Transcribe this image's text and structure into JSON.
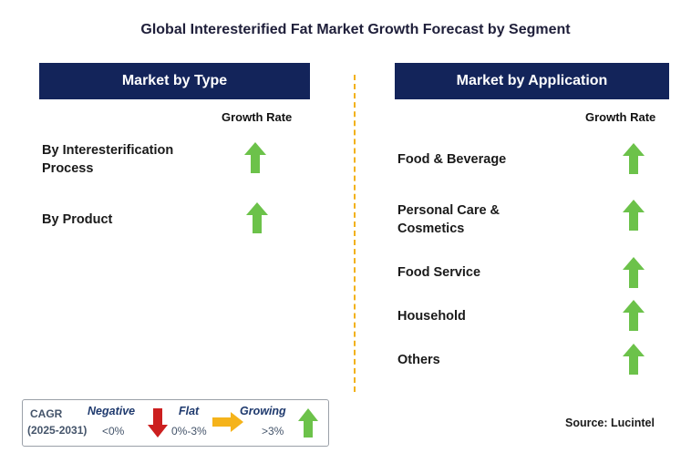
{
  "title": "Global Interesterified Fat Market Growth Forecast by Segment",
  "left_panel": {
    "header": "Market by Type",
    "growth_rate_label": "Growth Rate",
    "items": [
      {
        "label_line1": "By Interesterification",
        "label_line2": "Process",
        "trend": "growing"
      },
      {
        "label_line1": "By Product",
        "label_line2": "",
        "trend": "growing"
      }
    ]
  },
  "right_panel": {
    "header": "Market by Application",
    "growth_rate_label": "Growth Rate",
    "items": [
      {
        "label_line1": "Food & Beverage",
        "label_line2": "",
        "trend": "growing"
      },
      {
        "label_line1": "Personal Care &",
        "label_line2": "Cosmetics",
        "trend": "growing"
      },
      {
        "label_line1": "Food Service",
        "label_line2": "",
        "trend": "growing"
      },
      {
        "label_line1": "Household",
        "label_line2": "",
        "trend": "growing"
      },
      {
        "label_line1": "Others",
        "label_line2": "",
        "trend": "growing"
      }
    ]
  },
  "legend": {
    "cagr_label": "CAGR",
    "period": "(2025-2031)",
    "negative_label": "Negative",
    "negative_value": "<0%",
    "flat_label": "Flat",
    "flat_value": "0%-3%",
    "growing_label": "Growing",
    "growing_value": ">3%"
  },
  "source": "Source: Lucintel",
  "colors": {
    "header_bg": "#13245a",
    "growing_arrow": "#6cc24a",
    "negative_arrow": "#cc1f1f",
    "flat_arrow": "#f5b31b",
    "divider": "#f2b118"
  }
}
